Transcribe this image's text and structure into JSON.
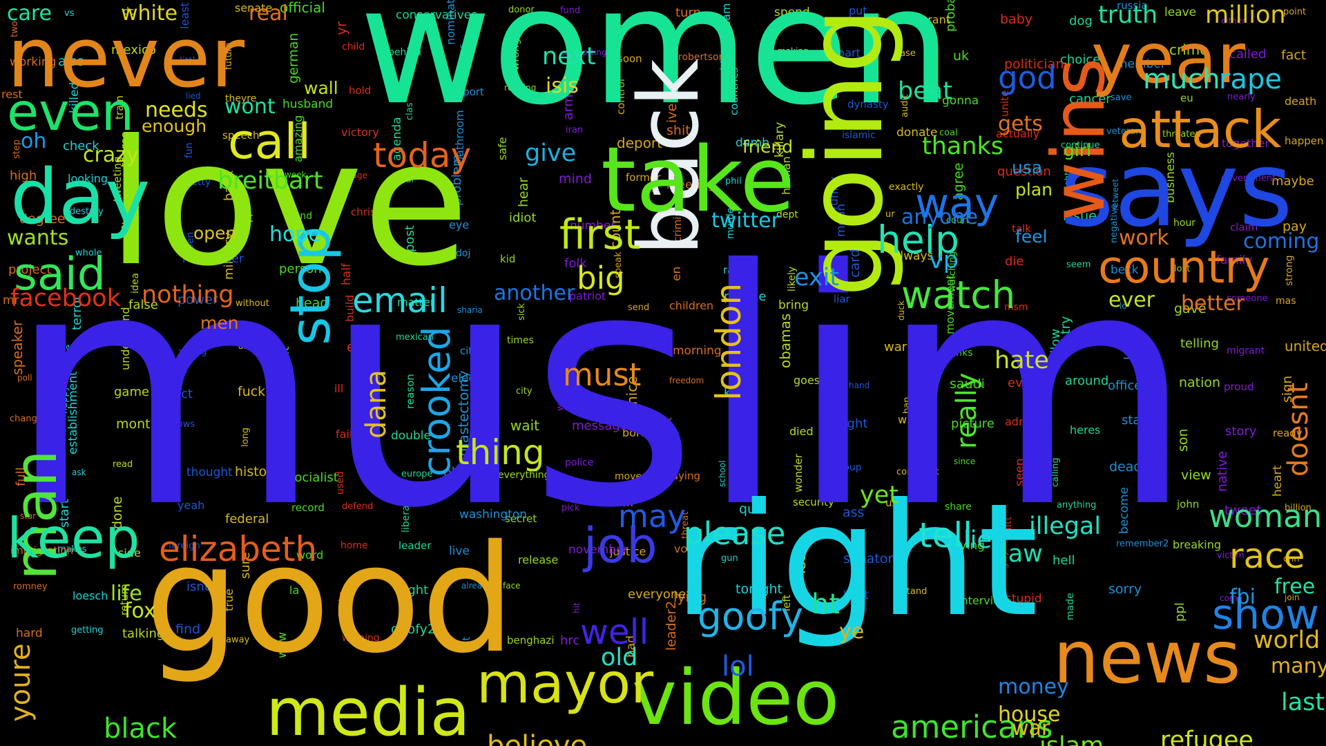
{
  "words": [
    {
      "text": "muslim",
      "color": "#3a22e6"
    },
    {
      "text": "women",
      "color": "#17e394"
    },
    {
      "text": "love",
      "color": "#8ee510"
    },
    {
      "text": "right",
      "color": "#16d6e6"
    },
    {
      "text": "good",
      "color": "#e3a617"
    },
    {
      "text": "never",
      "color": "#e2861c"
    },
    {
      "text": "says",
      "color": "#1f47e2"
    },
    {
      "text": "going",
      "color": "#b3ea12"
    },
    {
      "text": "back",
      "color": "#e8f0f4"
    },
    {
      "text": "take",
      "color": "#57e51b"
    },
    {
      "text": "day",
      "color": "#19e0a6"
    },
    {
      "text": "wins",
      "color": "#e55a18"
    },
    {
      "text": "news",
      "color": "#e78a1d"
    },
    {
      "text": "video",
      "color": "#6be411"
    },
    {
      "text": "media",
      "color": "#cfe818"
    },
    {
      "text": "year",
      "color": "#e27e1a"
    },
    {
      "text": "attack",
      "color": "#e88e1b"
    },
    {
      "text": "man",
      "color": "#53e33a"
    },
    {
      "text": "stop",
      "color": "#17c7e6"
    },
    {
      "text": "country",
      "color": "#e87a1a"
    },
    {
      "text": "keep",
      "color": "#21e0a0"
    },
    {
      "text": "mayor",
      "color": "#d8e217"
    },
    {
      "text": "job",
      "color": "#3a3ae5"
    },
    {
      "text": "even",
      "color": "#1be36a"
    },
    {
      "text": "said",
      "color": "#34e55a"
    },
    {
      "text": "call",
      "color": "#e1e91d"
    },
    {
      "text": "first",
      "color": "#c3e71b"
    },
    {
      "text": "crooked",
      "color": "#1ca6e6"
    },
    {
      "text": "london",
      "color": "#e3c21a"
    },
    {
      "text": "email",
      "color": "#29d9e3"
    },
    {
      "text": "watch",
      "color": "#46e73b"
    },
    {
      "text": "way",
      "color": "#1f74e8"
    },
    {
      "text": "help",
      "color": "#21e3b4"
    },
    {
      "text": "goofy",
      "color": "#21b3e6"
    },
    {
      "text": "show",
      "color": "#1f83e6"
    },
    {
      "text": "elizabeth",
      "color": "#e75d18"
    },
    {
      "text": "thing",
      "color": "#c4e51b"
    },
    {
      "text": "well",
      "color": "#4422e7"
    },
    {
      "text": "americans",
      "color": "#3de62d"
    },
    {
      "text": "today",
      "color": "#e3651a"
    },
    {
      "text": "tell",
      "color": "#21e3ce"
    },
    {
      "text": "please",
      "color": "#1ce0c9"
    },
    {
      "text": "woman",
      "color": "#36e28a"
    },
    {
      "text": "race",
      "color": "#e2c31c"
    },
    {
      "text": "youre",
      "color": "#e3b21a"
    },
    {
      "text": "black",
      "color": "#3ee529"
    },
    {
      "text": "believe",
      "color": "#e3bf1a"
    },
    {
      "text": "islam",
      "color": "#79e519"
    },
    {
      "text": "refugee",
      "color": "#d4e61a"
    },
    {
      "text": "facebook",
      "color": "#e6301a"
    },
    {
      "text": "nothing",
      "color": "#e3651a"
    },
    {
      "text": "breitbart",
      "color": "#4ee327"
    },
    {
      "text": "big",
      "color": "#d8e819"
    },
    {
      "text": "must",
      "color": "#e58a1c"
    },
    {
      "text": "may",
      "color": "#1e5be8"
    },
    {
      "text": "dana",
      "color": "#e5c21b"
    },
    {
      "text": "really",
      "color": "#4ce62b"
    },
    {
      "text": "doesnt",
      "color": "#e77c1a"
    },
    {
      "text": "much",
      "color": "#2ce5b4"
    },
    {
      "text": "rape",
      "color": "#19c9e3"
    },
    {
      "text": "give",
      "color": "#17b3e4"
    },
    {
      "text": "twitter",
      "color": "#1bc6e3"
    },
    {
      "text": "vp",
      "color": "#1bb3e8"
    },
    {
      "text": "another",
      "color": "#1b75e3"
    },
    {
      "text": "exit",
      "color": "#1d91e4"
    },
    {
      "text": "hate",
      "color": "#cae41b"
    },
    {
      "text": "law",
      "color": "#1de0b4"
    },
    {
      "text": "illegal",
      "color": "#1de3c4"
    },
    {
      "text": "lie",
      "color": "#25dfc8"
    },
    {
      "text": "yet",
      "color": "#6de51a"
    },
    {
      "text": "fox",
      "color": "#cbe51b"
    },
    {
      "text": "life",
      "color": "#a1e31c"
    },
    {
      "text": "old",
      "color": "#21e3c3"
    },
    {
      "text": "lol",
      "color": "#1b5ee3"
    },
    {
      "text": "ht",
      "color": "#1ee38f"
    },
    {
      "text": "ye",
      "color": "#e3b01c"
    },
    {
      "text": "house",
      "color": "#e3d71c"
    },
    {
      "text": "money",
      "color": "#1d87e6"
    },
    {
      "text": "war",
      "color": "#e3bf1a"
    },
    {
      "text": "many",
      "color": "#e3b01c"
    },
    {
      "text": "world",
      "color": "#e3b81a"
    },
    {
      "text": "last",
      "color": "#1fe3a7"
    },
    {
      "text": "free",
      "color": "#1fe3a7"
    },
    {
      "text": "fbi",
      "color": "#1d9ae3"
    },
    {
      "text": "thanks",
      "color": "#4de61e"
    },
    {
      "text": "god",
      "color": "#1d5de3"
    },
    {
      "text": "beat",
      "color": "#1ce3a0"
    },
    {
      "text": "truth",
      "color": "#1ce3a0"
    },
    {
      "text": "million",
      "color": "#e3c91c"
    },
    {
      "text": "next",
      "color": "#1fe3ad"
    },
    {
      "text": "isis",
      "color": "#e3d71c"
    },
    {
      "text": "white",
      "color": "#e3d71c"
    },
    {
      "text": "real",
      "color": "#e3741c"
    },
    {
      "text": "care",
      "color": "#1fe3a7"
    },
    {
      "text": "needs",
      "color": "#e3e31c"
    },
    {
      "text": "crazy",
      "color": "#c6e31c"
    },
    {
      "text": "wont",
      "color": "#1ce3a0"
    },
    {
      "text": "enough",
      "color": "#e3c41c"
    },
    {
      "text": "oh",
      "color": "#1d9ae3"
    },
    {
      "text": "wants",
      "color": "#a1e31c"
    },
    {
      "text": "open",
      "color": "#e3c41c"
    },
    {
      "text": "hope",
      "color": "#1de0e3"
    },
    {
      "text": "wall",
      "color": "#c6e31c"
    },
    {
      "text": "gets",
      "color": "#e3741c"
    },
    {
      "text": "anyone",
      "color": "#1d74e3"
    },
    {
      "text": "feel",
      "color": "#1d9ae3"
    },
    {
      "text": "work",
      "color": "#e3741c"
    },
    {
      "text": "coming",
      "color": "#1d74e3"
    },
    {
      "text": "ever",
      "color": "#c6e31c"
    },
    {
      "text": "better",
      "color": "#e3741c"
    },
    {
      "text": "girl",
      "color": "#4de61e"
    },
    {
      "text": "usa",
      "color": "#1d9ae3"
    },
    {
      "text": "plan",
      "color": "#c6e31c"
    },
    {
      "text": "friend",
      "color": "#c6e31c"
    },
    {
      "text": "men",
      "color": "#e3741c"
    },
    {
      "text": "said2",
      "color": "#1ce3a0"
    }
  ],
  "small_words": [
    "two",
    "vs",
    "dc",
    "least",
    "senate",
    "official",
    "yr",
    "conservatives",
    "nomination",
    "donor",
    "fund",
    "hey",
    "turn",
    "team",
    "spend",
    "put",
    "immigrant",
    "probably",
    "baby",
    "dog",
    "russia",
    "leave",
    "either",
    "point",
    "working",
    "also",
    "mexico",
    "little",
    "future",
    "german",
    "child",
    "behind",
    "honor",
    "wrong",
    "supporting",
    "soon",
    "robertson",
    "racist",
    "making",
    "part",
    "case",
    "uk",
    "politician",
    "choice",
    "member",
    "crime",
    "called",
    "fact",
    "rest",
    "killed",
    "train",
    "lied",
    "theyre",
    "husband",
    "hold",
    "clas",
    "report",
    "running",
    "army",
    "control",
    "ive",
    "countries",
    "close",
    "dynasty",
    "audit",
    "gonna",
    "unite",
    "cancer",
    "save",
    "eu",
    "nearly",
    "death",
    "step",
    "check",
    "theres",
    "fun",
    "speech",
    "amazing",
    "victory",
    "agenda",
    "bathroom",
    "safe",
    "iran",
    "deport",
    "shit",
    "dumb",
    "killary",
    "islamic",
    "donate",
    "coal",
    "actually",
    "continue",
    "veteran",
    "threaten",
    "together",
    "happen",
    "high",
    "looking",
    "tweeting",
    "pretty",
    "bank",
    "week",
    "page",
    "deal",
    "problem",
    "hear",
    "mind",
    "former",
    "meeting",
    "phil",
    "human",
    "funny",
    "exactly",
    "agree",
    "question",
    "night",
    "retweet",
    "business",
    "government",
    "maybe",
    "degree",
    "destroy",
    "ad",
    "ben",
    "list",
    "found",
    "christian",
    "post",
    "eye",
    "idiot",
    "number",
    "count",
    "criminal",
    "murder",
    "dept",
    "mean",
    "ur",
    "court",
    "talk",
    "issue",
    "negative",
    "hour",
    "claim",
    "pay",
    "project",
    "whole",
    "idea",
    "remember",
    "military",
    "person",
    "half",
    "dear",
    "doj",
    "kid",
    "folk",
    "speak",
    "en",
    "raped",
    "likely",
    "card",
    "always",
    "watching",
    "die",
    "seem",
    "beck",
    "lost",
    "family",
    "strong",
    "mr",
    "terror",
    "false",
    "power",
    "without",
    "head",
    "build",
    "matter",
    "sharia",
    "sick",
    "patriot",
    "send",
    "children",
    "pledge",
    "bring",
    "liar",
    "duck",
    "movement",
    "msm",
    "try",
    "lo",
    "gave",
    "someone",
    "mas",
    "speaker",
    "huge",
    "understand",
    "young",
    "aide",
    "mt",
    "end",
    "mexican",
    "citizen",
    "times",
    "using",
    "top",
    "morning",
    "pa",
    "obamas",
    "whats",
    "warn",
    "thinks",
    "answer",
    "follow",
    "loser",
    "telling",
    "migrant",
    "united",
    "poll",
    "happy",
    "game",
    "act",
    "fuck",
    "guess",
    "ill",
    "reason",
    "elected",
    "city",
    "welcome",
    "nice",
    "freedom",
    "kill",
    "goes",
    "hand",
    "ban",
    "saudi",
    "evil",
    "around",
    "office",
    "nation",
    "proud",
    "sign",
    "change",
    "establishment",
    "month",
    "knows",
    "long",
    "name",
    "failed",
    "double",
    "mastectomy",
    "wait",
    "message",
    "border",
    "forget",
    "less",
    "died",
    "might",
    "winner",
    "picture",
    "admit",
    "heres",
    "stay",
    "son",
    "story",
    "ready",
    "full",
    "ask",
    "read",
    "thought",
    "history",
    "socialist",
    "used",
    "europe",
    "ok",
    "everything",
    "police",
    "move",
    "saying",
    "school",
    "wonder",
    "group",
    "comment",
    "since",
    "seen",
    "calling",
    "dead",
    "view",
    "native",
    "heart",
    "star",
    "start",
    "done",
    "yeah",
    "federal",
    "record",
    "defend",
    "liberals",
    "washington",
    "secret",
    "pick",
    "town",
    "threat",
    "que",
    "security",
    "ass",
    "use",
    "share",
    "mitt",
    "anything",
    "become",
    "john",
    "tweet",
    "billion",
    "immigration",
    "makes",
    "side",
    "foreign",
    "sure",
    "word",
    "home",
    "leader",
    "live",
    "release",
    "november",
    "justice",
    "voted",
    "gun",
    "lets",
    "senator",
    "ago",
    "trying",
    "guy",
    "hell",
    "remember2",
    "breaking",
    "victim",
    "cnn",
    "romney",
    "loesch",
    "return",
    "isnt",
    "true",
    "la",
    "looks",
    "fight",
    "already",
    "face",
    "hit",
    "everyone",
    "lying",
    "tonight",
    "left",
    "best",
    "stand",
    "interview",
    "stupid",
    "made",
    "sorry",
    "ppl",
    "come",
    "join",
    "hard",
    "getting",
    "talking",
    "find",
    "away",
    "wow",
    "winning",
    "goofy2",
    "lot",
    "benghazi",
    "hrc",
    "bad",
    "leader2"
  ]
}
